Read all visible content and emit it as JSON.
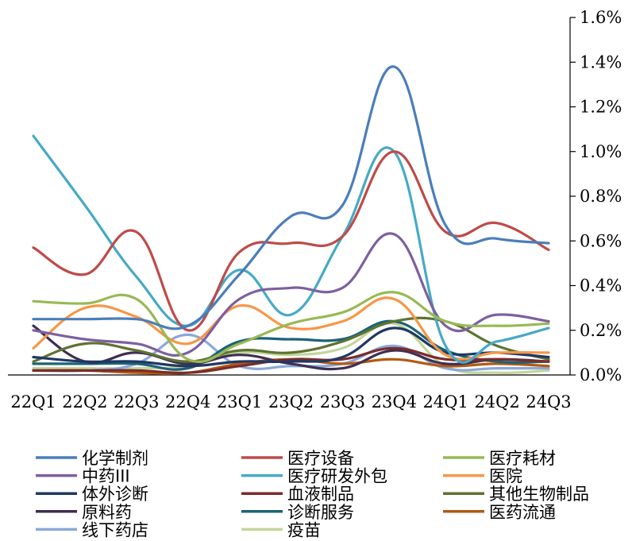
{
  "chart_data": {
    "type": "line",
    "categories": [
      "22Q1",
      "22Q2",
      "22Q3",
      "22Q4",
      "23Q1",
      "23Q2",
      "23Q3",
      "23Q4",
      "24Q1",
      "24Q2",
      "24Q3"
    ],
    "y_axis": {
      "position": "right",
      "ylim": [
        0,
        1.6
      ],
      "ticks": [
        0,
        0.2,
        0.4,
        0.6,
        0.8,
        1.0,
        1.2,
        1.4,
        1.6
      ],
      "tick_labels": [
        "0.0%",
        "0.2%",
        "0.4%",
        "0.6%",
        "0.8%",
        "1.0%",
        "1.2%",
        "1.4%",
        "1.6%"
      ]
    },
    "grid": false,
    "legend": "bottom",
    "series": [
      {
        "name": "化学制剂",
        "color": "#4A7EBB",
        "values": [
          0.25,
          0.25,
          0.25,
          0.22,
          0.45,
          0.71,
          0.76,
          1.38,
          0.67,
          0.61,
          0.59
        ]
      },
      {
        "name": "医疗设备",
        "color": "#BE4B48",
        "values": [
          0.57,
          0.45,
          0.64,
          0.2,
          0.55,
          0.59,
          0.62,
          1.0,
          0.64,
          0.68,
          0.56
        ]
      },
      {
        "name": "医疗耗材",
        "color": "#98B954",
        "values": [
          0.33,
          0.32,
          0.34,
          0.07,
          0.14,
          0.23,
          0.28,
          0.37,
          0.24,
          0.22,
          0.23
        ]
      },
      {
        "name": "中药III",
        "color": "#7D60A0",
        "values": [
          0.2,
          0.16,
          0.14,
          0.1,
          0.34,
          0.39,
          0.39,
          0.63,
          0.22,
          0.27,
          0.24
        ]
      },
      {
        "name": "医疗研发外包",
        "color": "#46AAC5",
        "values": [
          1.07,
          0.76,
          0.44,
          0.22,
          0.47,
          0.27,
          0.62,
          1.0,
          0.13,
          0.15,
          0.21
        ]
      },
      {
        "name": "医院",
        "color": "#F79646",
        "values": [
          0.12,
          0.3,
          0.26,
          0.14,
          0.31,
          0.21,
          0.24,
          0.34,
          0.09,
          0.1,
          0.1
        ]
      },
      {
        "name": "体外诊断",
        "color": "#1F3864",
        "values": [
          0.08,
          0.06,
          0.06,
          0.04,
          0.06,
          0.06,
          0.08,
          0.21,
          0.1,
          0.1,
          0.08
        ]
      },
      {
        "name": "血液制品",
        "color": "#7B2C2A",
        "values": [
          0.02,
          0.02,
          0.02,
          0.01,
          0.04,
          0.07,
          0.07,
          0.12,
          0.07,
          0.07,
          0.06
        ]
      },
      {
        "name": "其他生物制品",
        "color": "#5E7330",
        "values": [
          0.06,
          0.14,
          0.11,
          0.06,
          0.11,
          0.1,
          0.15,
          0.24,
          0.24,
          0.13,
          0.07
        ]
      },
      {
        "name": "原料药",
        "color": "#3F2F54",
        "values": [
          0.22,
          0.06,
          0.1,
          0.05,
          0.09,
          0.05,
          0.03,
          0.11,
          0.05,
          0.07,
          0.06
        ]
      },
      {
        "name": "诊断服务",
        "color": "#1C6377",
        "values": [
          0.05,
          0.05,
          0.05,
          0.03,
          0.15,
          0.16,
          0.16,
          0.24,
          0.11,
          0.06,
          0.06
        ]
      },
      {
        "name": "医药流通",
        "color": "#B35A12",
        "values": [
          0.02,
          0.02,
          0.01,
          0.01,
          0.05,
          0.07,
          0.05,
          0.07,
          0.04,
          0.05,
          0.04
        ]
      },
      {
        "name": "线下药店",
        "color": "#8BA8D9",
        "values": [
          0.02,
          0.02,
          0.05,
          0.18,
          0.04,
          0.04,
          0.05,
          0.13,
          0.03,
          0.03,
          0.03
        ]
      },
      {
        "name": "疫苗",
        "color": "#C3D69B",
        "values": [
          0.03,
          0.03,
          0.03,
          0.04,
          0.1,
          0.09,
          0.12,
          0.23,
          0.04,
          0.01,
          0.02
        ]
      }
    ]
  }
}
